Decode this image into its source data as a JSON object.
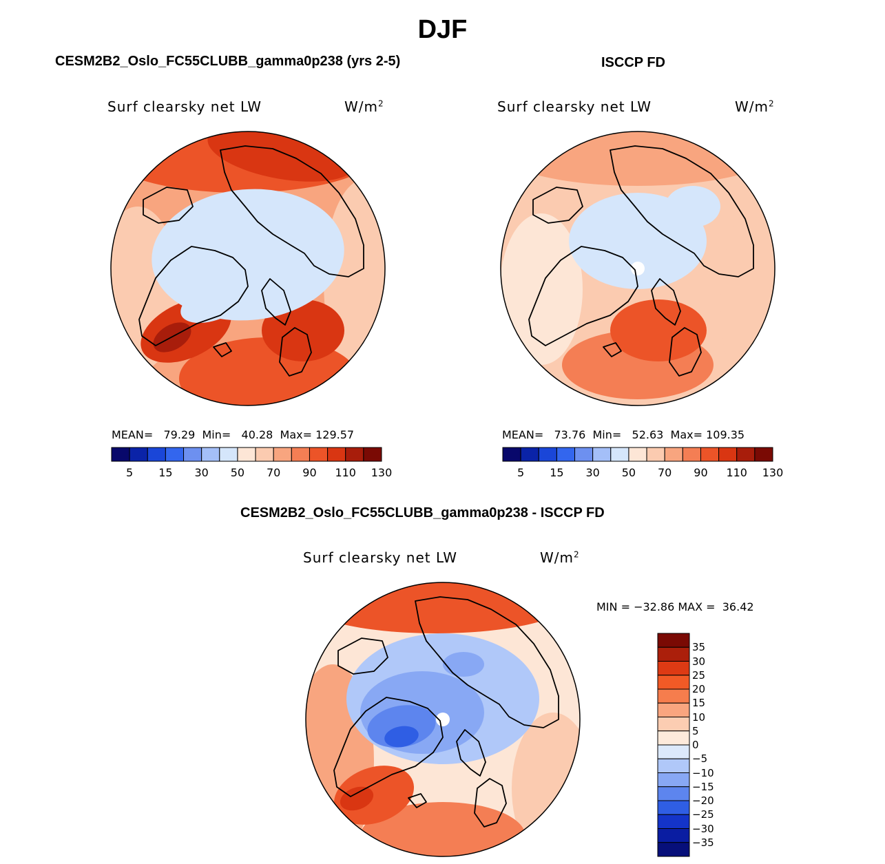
{
  "title": "DJF",
  "panels": [
    {
      "id": "model",
      "title": "CESM2B2_Oslo_FC55CLUBB_gamma0p238 (yrs 2-5)",
      "variable": "Surf clearsky net LW",
      "units": "W/m",
      "units_sup": "2",
      "mean_label": "MEAN=",
      "mean": "79.29",
      "min_label": "Min=",
      "min": "40.28",
      "max_label": "Max=",
      "max": "129.57"
    },
    {
      "id": "obs",
      "title": "ISCCP FD",
      "variable": "Surf clearsky net LW",
      "units": "W/m",
      "units_sup": "2",
      "mean_label": "MEAN=",
      "mean": "73.76",
      "min_label": "Min=",
      "min": "52.63",
      "max_label": "Max=",
      "max": "109.35"
    },
    {
      "id": "diff",
      "title": "CESM2B2_Oslo_FC55CLUBB_gamma0p238 - ISCCP FD",
      "variable": "Surf clearsky net LW",
      "units": "W/m",
      "units_sup": "2",
      "minmax_text": "MIN = −32.86 MAX =  36.42"
    }
  ],
  "colorbar_abs": {
    "colors": [
      "#08086b",
      "#0a23a8",
      "#1a46d8",
      "#3366ee",
      "#6d90f0",
      "#a4bff8",
      "#d5e6fb",
      "#fde6d6",
      "#fbcbb0",
      "#f8a57f",
      "#f47e54",
      "#ec5428",
      "#d93612",
      "#a81d0b",
      "#7a0a04"
    ],
    "tick_labels": [
      "5",
      "15",
      "30",
      "50",
      "70",
      "90",
      "110",
      "130"
    ]
  },
  "colorbar_diff": {
    "colors": [
      "#7a0a04",
      "#ab1f0b",
      "#dd3a14",
      "#f15a26",
      "#f67d4d",
      "#f9a57f",
      "#fccdb2",
      "#fdeadb",
      "#dce9fb",
      "#b0c8f9",
      "#88a8f4",
      "#5d85ee",
      "#2f5ee4",
      "#1434c9",
      "#0a1da2",
      "#070f7a"
    ],
    "tick_labels": [
      "35",
      "30",
      "25",
      "20",
      "15",
      "10",
      "5",
      "0",
      "−5",
      "−10",
      "−15",
      "−20",
      "−25",
      "−30",
      "−35"
    ]
  },
  "map_colors": {
    "ice_light": "#d5e6fb",
    "pale_peach": "#fde6d6",
    "light_orange": "#fbcbb0",
    "orange": "#f8a57f",
    "red_orange": "#f47e54",
    "red": "#ec5428",
    "deep_red": "#d93612",
    "darkest": "#a81d0b",
    "blue1": "#b0c8f9",
    "blue2": "#88a8f4",
    "blue3": "#5d85ee",
    "blue4": "#2f5ee4"
  }
}
